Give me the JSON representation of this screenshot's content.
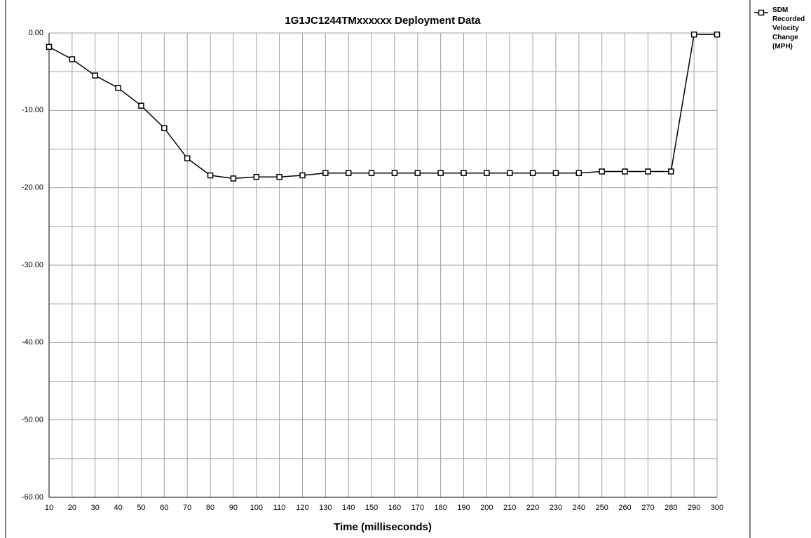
{
  "chart_data": {
    "type": "line",
    "title": "1G1JC1244TMxxxxxx  Deployment Data",
    "x_label": "Time (milliseconds)",
    "categories": [
      10,
      20,
      30,
      40,
      50,
      60,
      70,
      80,
      90,
      100,
      110,
      120,
      130,
      140,
      150,
      160,
      170,
      180,
      190,
      200,
      210,
      220,
      230,
      240,
      250,
      260,
      270,
      280,
      290,
      300
    ],
    "series": [
      {
        "name": "SDM Recorded Velocity Change (MPH)",
        "color": "#000000",
        "values": [
          -1.8,
          -3.4,
          -5.5,
          -7.1,
          -9.4,
          -12.3,
          -16.2,
          -18.4,
          -18.8,
          -18.6,
          -18.6,
          -18.4,
          -18.1,
          -18.1,
          -18.1,
          -18.1,
          -18.1,
          -18.1,
          -18.1,
          -18.1,
          -18.1,
          -18.1,
          -18.1,
          -18.1,
          -17.9,
          -17.9,
          -17.9,
          -17.9,
          -0.2,
          -0.2
        ]
      }
    ],
    "ylim": [
      -60,
      0
    ],
    "yticks": [
      {
        "value": 0,
        "label": "0.00"
      },
      {
        "value": -10,
        "label": "-10.00"
      },
      {
        "value": -20,
        "label": "-20.00"
      },
      {
        "value": -30,
        "label": "-30.00"
      },
      {
        "value": -40,
        "label": "-40.00"
      },
      {
        "value": -50,
        "label": "-50.00"
      },
      {
        "value": -60,
        "label": "-60.00"
      }
    ],
    "y_minor_ticks": [
      -5,
      -15,
      -25,
      -35,
      -45,
      -55
    ],
    "grid": true,
    "legend": "right"
  }
}
